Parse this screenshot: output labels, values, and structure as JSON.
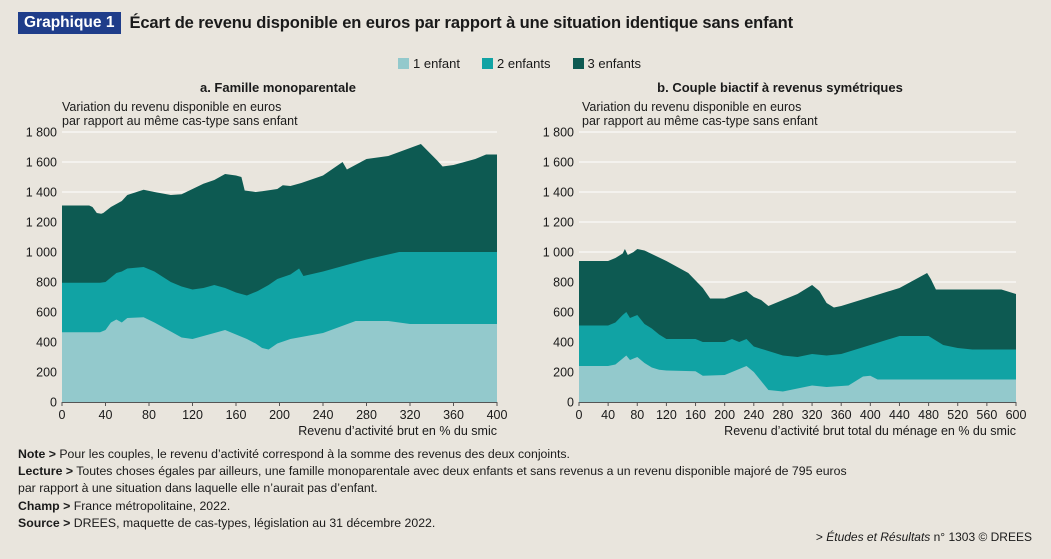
{
  "header": {
    "badge": "Graphique 1",
    "title": "Écart de revenu disponible en euros par rapport à une situation identique sans enfant"
  },
  "colors": {
    "one_child": "#93c9cc",
    "two_children": "#11a3a4",
    "three_children": "#0d5a52",
    "badge": "#1f3d8a",
    "background": "#e9e5dd"
  },
  "legend": {
    "items": [
      "1 enfant",
      "2 enfants",
      "3 enfants"
    ]
  },
  "notes": {
    "note_label": "Note >",
    "note_text": " Pour les couples, le revenu d’activité correspond à la somme des revenus des deux conjoints.",
    "lecture_label": "Lecture >",
    "lecture_text_1": " Toutes choses égales par ailleurs, une famille monoparentale avec deux enfants et sans revenus a un revenu disponible majoré de 795 euros",
    "lecture_text_2": "par rapport à une situation dans laquelle elle n’aurait pas d’enfant.",
    "champ_label": "Champ >",
    "champ_text": " France métropolitaine, 2022.",
    "source_label": "Source >",
    "source_text": " DREES, maquette de cas-types, législation au 31 décembre 2022.",
    "ref_prefix": "> ",
    "ref_italic": "Études et Résultats",
    "ref_suffix": " n° 1303 © DREES"
  },
  "chart_data": [
    {
      "type": "area",
      "stacking": "cumulative levels shown as overlapping areas",
      "title": "a. Famille monoparentale",
      "ylabel_line1": "Variation du revenu disponible en euros",
      "ylabel_line2": "par rapport au même cas-type sans enfant",
      "xlabel": "Revenu d’activité brut en % du smic",
      "xlim": [
        0,
        400
      ],
      "ylim": [
        0,
        1800
      ],
      "xticks": [
        0,
        40,
        80,
        120,
        160,
        200,
        240,
        280,
        320,
        360,
        400
      ],
      "yticks": [
        0,
        200,
        400,
        600,
        800,
        1000,
        1200,
        1400,
        1600,
        1800
      ],
      "ytick_labels": [
        "0",
        "200",
        "400",
        "600",
        "800",
        "1 000",
        "1 200",
        "1 400",
        "1 600",
        "1 800"
      ],
      "grid": "horizontal",
      "series": [
        {
          "name": "1 enfant",
          "x": [
            0,
            35,
            40,
            45,
            50,
            55,
            60,
            75,
            85,
            100,
            110,
            120,
            130,
            140,
            150,
            160,
            170,
            178,
            184,
            190,
            198,
            210,
            240,
            270,
            300,
            320,
            340,
            360,
            380,
            400
          ],
          "y": [
            465,
            465,
            480,
            530,
            550,
            530,
            560,
            565,
            530,
            470,
            430,
            420,
            440,
            460,
            480,
            450,
            420,
            390,
            360,
            350,
            390,
            420,
            460,
            540,
            540,
            520,
            520,
            520,
            520,
            520
          ]
        },
        {
          "name": "2 enfants",
          "x": [
            0,
            35,
            40,
            45,
            50,
            55,
            60,
            75,
            85,
            100,
            110,
            120,
            130,
            140,
            150,
            160,
            165,
            170,
            180,
            190,
            198,
            210,
            218,
            222,
            240,
            280,
            310,
            320,
            360,
            400
          ],
          "y": [
            795,
            795,
            800,
            830,
            860,
            870,
            890,
            900,
            870,
            800,
            770,
            750,
            760,
            780,
            760,
            730,
            720,
            710,
            740,
            780,
            820,
            850,
            890,
            840,
            870,
            950,
            1000,
            1000,
            1000,
            1000
          ]
        },
        {
          "name": "3 enfants",
          "x": [
            0,
            25,
            28,
            32,
            36,
            38,
            45,
            55,
            60,
            75,
            85,
            100,
            110,
            120,
            130,
            140,
            150,
            160,
            165,
            168,
            178,
            184,
            198,
            203,
            210,
            220,
            240,
            258,
            262,
            280,
            300,
            330,
            345,
            350,
            360,
            380,
            390,
            400
          ],
          "y": [
            1310,
            1310,
            1300,
            1260,
            1255,
            1260,
            1300,
            1340,
            1380,
            1415,
            1400,
            1380,
            1385,
            1420,
            1455,
            1480,
            1520,
            1510,
            1500,
            1410,
            1400,
            1405,
            1420,
            1445,
            1440,
            1460,
            1510,
            1600,
            1550,
            1620,
            1640,
            1720,
            1610,
            1570,
            1580,
            1620,
            1650,
            1650
          ]
        }
      ]
    },
    {
      "type": "area",
      "stacking": "cumulative levels shown as overlapping areas",
      "title": "b. Couple biactif à revenus symétriques",
      "ylabel_line1": "Variation du revenu disponible en euros",
      "ylabel_line2": "par rapport au même cas-type sans enfant",
      "xlabel": "Revenu d’activité brut total du ménage en % du smic",
      "xlim": [
        0,
        600
      ],
      "ylim": [
        0,
        1800
      ],
      "xticks": [
        0,
        40,
        80,
        120,
        160,
        200,
        240,
        280,
        320,
        360,
        400,
        440,
        480,
        520,
        560,
        600
      ],
      "yticks": [
        0,
        200,
        400,
        600,
        800,
        1000,
        1200,
        1400,
        1600,
        1800
      ],
      "ytick_labels": [
        "0",
        "200",
        "400",
        "600",
        "800",
        "1 000",
        "1 200",
        "1 400",
        "1 600",
        "1 800"
      ],
      "grid": "horizontal",
      "series": [
        {
          "name": "1 enfant",
          "x": [
            0,
            40,
            50,
            60,
            65,
            70,
            80,
            90,
            100,
            110,
            120,
            160,
            170,
            200,
            230,
            240,
            260,
            280,
            300,
            320,
            340,
            370,
            390,
            400,
            410,
            480,
            600
          ],
          "y": [
            240,
            240,
            250,
            290,
            310,
            280,
            300,
            260,
            230,
            215,
            210,
            205,
            175,
            180,
            240,
            200,
            80,
            70,
            90,
            110,
            100,
            110,
            170,
            175,
            150,
            150,
            150
          ]
        },
        {
          "name": "2 enfants",
          "x": [
            0,
            40,
            50,
            60,
            65,
            70,
            80,
            90,
            100,
            110,
            120,
            160,
            170,
            200,
            210,
            220,
            230,
            240,
            260,
            280,
            300,
            320,
            340,
            360,
            400,
            440,
            480,
            500,
            520,
            540,
            600
          ],
          "y": [
            510,
            510,
            530,
            580,
            600,
            560,
            580,
            520,
            490,
            450,
            420,
            420,
            400,
            400,
            420,
            400,
            420,
            370,
            340,
            310,
            300,
            320,
            310,
            320,
            380,
            440,
            440,
            380,
            360,
            350,
            350
          ]
        },
        {
          "name": "3 enfants",
          "x": [
            0,
            40,
            50,
            60,
            63,
            67,
            75,
            80,
            90,
            120,
            150,
            170,
            180,
            200,
            230,
            240,
            250,
            260,
            300,
            320,
            330,
            340,
            350,
            360,
            400,
            440,
            478,
            483,
            490,
            500,
            520,
            560,
            580,
            600
          ],
          "y": [
            940,
            940,
            960,
            990,
            1020,
            980,
            1000,
            1020,
            1010,
            940,
            860,
            760,
            690,
            690,
            740,
            700,
            680,
            640,
            720,
            780,
            740,
            660,
            630,
            640,
            700,
            760,
            860,
            820,
            750,
            750,
            750,
            750,
            750,
            720
          ]
        }
      ]
    }
  ]
}
